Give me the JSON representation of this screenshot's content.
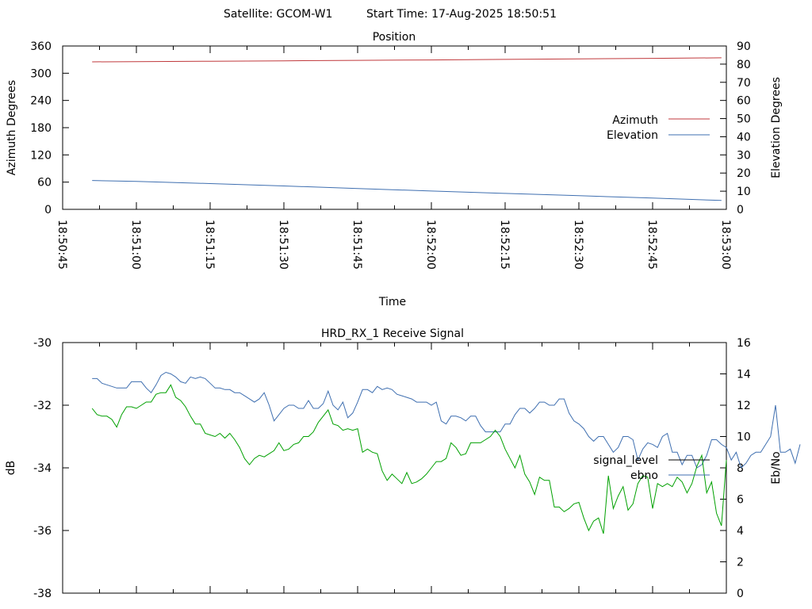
{
  "header": {
    "satellite": "Satellite: GCOM-W1",
    "start_time": "Start Time: 17-Aug-2025 18:50:51"
  },
  "colors": {
    "azimuth": "#c0393c",
    "elevation": "#3f6fb0",
    "signal_level": "#00a000",
    "ebno": "#3f6fb0",
    "legend_signal": "#000000"
  },
  "chart_data": [
    {
      "type": "line",
      "title": "Position",
      "xlabel": "Time",
      "ylabel": "Azimuth Degrees",
      "y2label": "Elevation Degrees",
      "xlim": [
        "18:50:45",
        "18:53:00"
      ],
      "ylim": [
        0,
        360
      ],
      "y2lim": [
        0,
        90
      ],
      "x_ticks": [
        "18:50:45",
        "18:51:00",
        "18:51:15",
        "18:51:30",
        "18:51:45",
        "18:52:00",
        "18:52:15",
        "18:52:30",
        "18:52:45",
        "18:53:00"
      ],
      "y_ticks": [
        "0",
        "60",
        "120",
        "180",
        "240",
        "300",
        "360"
      ],
      "y2_ticks": [
        "0",
        "10",
        "20",
        "30",
        "40",
        "50",
        "60",
        "70",
        "80",
        "90"
      ],
      "legend_position": "right",
      "grid": false,
      "series": [
        {
          "name": "Azimuth",
          "axis": "left",
          "color": "#c0393c",
          "x": [
            "18:50:51",
            "18:51:00",
            "18:51:15",
            "18:51:30",
            "18:51:45",
            "18:52:00",
            "18:52:15",
            "18:52:30",
            "18:52:45",
            "18:52:59"
          ],
          "y": [
            325,
            325.5,
            326.4,
            327.4,
            328.3,
            329.3,
            330.5,
            331.6,
            332.8,
            334
          ]
        },
        {
          "name": "Elevation",
          "axis": "right",
          "color": "#3f6fb0",
          "x": [
            "18:50:51",
            "18:51:00",
            "18:51:15",
            "18:51:30",
            "18:51:45",
            "18:52:00",
            "18:52:15",
            "18:52:30",
            "18:52:45",
            "18:52:59"
          ],
          "y": [
            15.9,
            15.4,
            14.2,
            12.9,
            11.5,
            10.1,
            8.8,
            7.5,
            6.2,
            4.9
          ]
        }
      ]
    },
    {
      "type": "line",
      "title": "HRD_RX_1 Receive Signal",
      "ylabel": "dB",
      "y2label": "Eb/No",
      "xlim": [
        "18:50:45",
        "18:53:00"
      ],
      "ylim": [
        -38,
        -30
      ],
      "y2lim": [
        0,
        16
      ],
      "y_ticks": [
        "-38",
        "-36",
        "-34",
        "-32",
        "-30"
      ],
      "y2_ticks": [
        "0",
        "2",
        "4",
        "6",
        "8",
        "10",
        "12",
        "14",
        "16"
      ],
      "legend_position": "right",
      "grid": false,
      "series": [
        {
          "name": "signal_level",
          "axis": "left",
          "color": "#000000",
          "y": []
        },
        {
          "name": "ebno",
          "axis": "right",
          "color": "#3f6fb0",
          "x_start": "18:50:51",
          "x_step_s": 1,
          "y": [
            13.7,
            13.7,
            13.4,
            13.3,
            13.2,
            13.1,
            13.1,
            13.1,
            13.5,
            13.5,
            13.5,
            13.1,
            12.8,
            13.3,
            13.9,
            14.1,
            14.0,
            13.8,
            13.5,
            13.4,
            13.8,
            13.7,
            13.8,
            13.7,
            13.4,
            13.1,
            13.1,
            13.0,
            13.0,
            12.8,
            12.8,
            12.6,
            12.4,
            12.2,
            12.4,
            12.8,
            12.0,
            11.0,
            11.4,
            11.8,
            12.0,
            12.0,
            11.8,
            11.8,
            12.3,
            11.8,
            11.8,
            12.1,
            12.9,
            12.0,
            11.7,
            12.2,
            11.2,
            11.5,
            12.2,
            13.0,
            13.0,
            12.8,
            13.2,
            13.0,
            13.1,
            13.0,
            12.7,
            12.6,
            12.5,
            12.4,
            12.2,
            12.2,
            12.2,
            12.0,
            12.2,
            11.0,
            10.8,
            11.3,
            11.3,
            11.2,
            11.0,
            11.3,
            11.3,
            10.7,
            10.3,
            10.3,
            10.3,
            10.3,
            10.8,
            10.8,
            11.4,
            11.8,
            11.8,
            11.5,
            11.8,
            12.2,
            12.2,
            12.0,
            12.0,
            12.4,
            12.4,
            11.5,
            11.0,
            10.8,
            10.5,
            10.0,
            9.7,
            10.0,
            10.0,
            9.5,
            9.0,
            9.3,
            10.0,
            10.0,
            9.8,
            8.5,
            9.2,
            9.6,
            9.5,
            9.3,
            10.0,
            10.2,
            9.0,
            9.0,
            8.2,
            8.8,
            8.8,
            8.0,
            8.2,
            8.8,
            9.8,
            9.8,
            9.5,
            9.3,
            8.5,
            9.0,
            8.0,
            8.3,
            8.8,
            9.0,
            9.0,
            9.5,
            10.0,
            12.0,
            9.0,
            9.0,
            9.2,
            8.3,
            9.5
          ]
        },
        {
          "name": "signal_level (green trace)",
          "axis": "left",
          "color": "#00a000",
          "x_start": "18:50:51",
          "x_step_s": 1,
          "y": [
            -32.1,
            -32.3,
            -32.35,
            -32.35,
            -32.45,
            -32.7,
            -32.3,
            -32.05,
            -32.05,
            -32.1,
            -32.0,
            -31.9,
            -31.9,
            -31.65,
            -31.6,
            -31.6,
            -31.35,
            -31.75,
            -31.85,
            -32.05,
            -32.35,
            -32.6,
            -32.6,
            -32.9,
            -32.95,
            -33.0,
            -32.9,
            -33.05,
            -32.9,
            -33.1,
            -33.35,
            -33.7,
            -33.9,
            -33.7,
            -33.6,
            -33.65,
            -33.55,
            -33.45,
            -33.2,
            -33.45,
            -33.4,
            -33.25,
            -33.2,
            -33.0,
            -33.0,
            -32.85,
            -32.55,
            -32.35,
            -32.15,
            -32.6,
            -32.65,
            -32.8,
            -32.75,
            -32.8,
            -32.75,
            -33.5,
            -33.4,
            -33.5,
            -33.55,
            -34.1,
            -34.4,
            -34.2,
            -34.35,
            -34.5,
            -34.15,
            -34.5,
            -34.45,
            -34.35,
            -34.2,
            -34.0,
            -33.8,
            -33.8,
            -33.7,
            -33.2,
            -33.35,
            -33.6,
            -33.55,
            -33.2,
            -33.2,
            -33.2,
            -33.1,
            -33.0,
            -32.8,
            -33.0,
            -33.4,
            -33.7,
            -34.0,
            -33.6,
            -34.2,
            -34.45,
            -34.85,
            -34.3,
            -34.4,
            -34.4,
            -35.25,
            -35.25,
            -35.4,
            -35.3,
            -35.15,
            -35.1,
            -35.6,
            -36.0,
            -35.7,
            -35.6,
            -36.1,
            -34.25,
            -35.3,
            -34.9,
            -34.6,
            -35.35,
            -35.15,
            -34.5,
            -34.25,
            -34.3,
            -35.3,
            -34.5,
            -34.6,
            -34.5,
            -34.6,
            -34.3,
            -34.45,
            -34.8,
            -34.5,
            -33.95,
            -33.6,
            -34.8,
            -34.45,
            -35.45,
            -35.85,
            -33.75
          ]
        }
      ]
    }
  ]
}
